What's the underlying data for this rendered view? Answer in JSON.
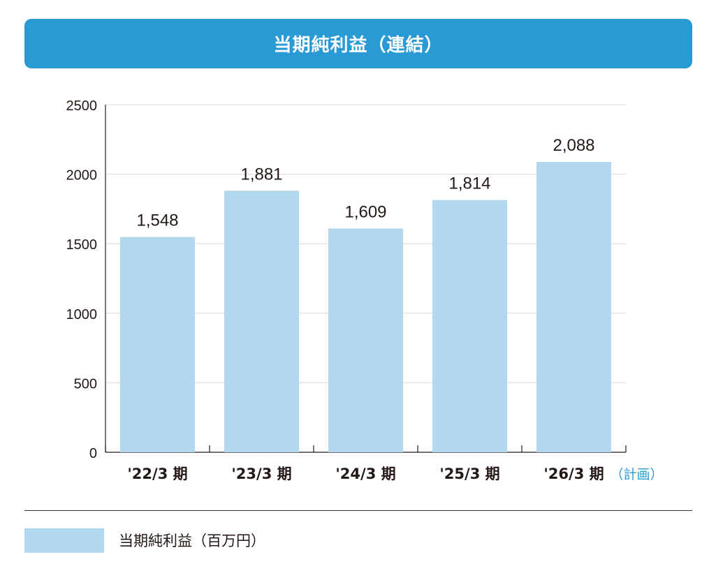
{
  "chart_data": {
    "type": "bar",
    "title": "当期純利益（連結）",
    "categories": [
      "'22/3 期",
      "'23/3 期",
      "'24/3 期",
      "'25/3 期",
      "'26/3 期"
    ],
    "category_notes": [
      "",
      "",
      "",
      "",
      "（計画）"
    ],
    "series": [
      {
        "name": "当期純利益（百万円）",
        "values": [
          1548,
          1881,
          1609,
          1814,
          2088
        ]
      }
    ],
    "data_labels": [
      "1,548",
      "1,881",
      "1,609",
      "1,814",
      "2,088"
    ],
    "yticks": [
      0,
      500,
      1000,
      1500,
      2000,
      2500
    ],
    "ylim": [
      0,
      2500
    ],
    "xlabel": "",
    "ylabel": "",
    "grid": true,
    "legend_position": "bottom-left"
  },
  "legend": {
    "label": "当期純利益（百万円）"
  },
  "colors": {
    "bar": "#b1d8ed",
    "accent": "#2a9ad5",
    "grid": "#d9d9d9",
    "axis": "#231815"
  }
}
